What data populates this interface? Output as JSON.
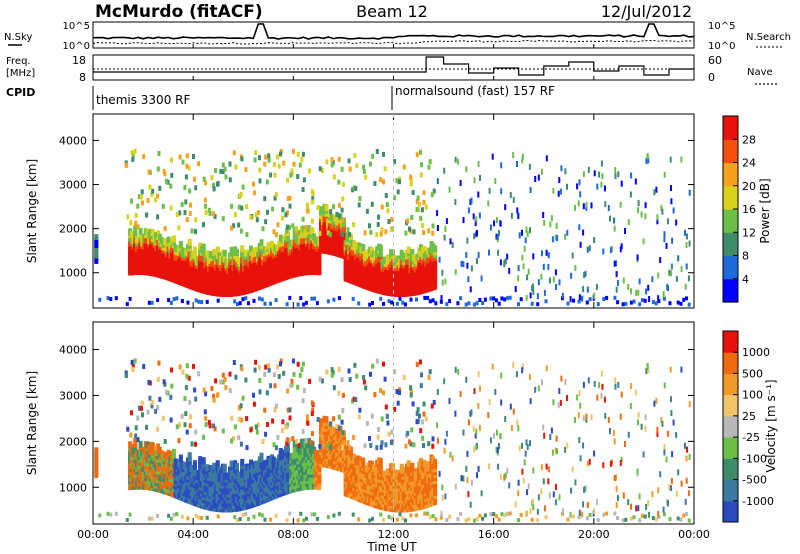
{
  "header": {
    "radar": "McMurdo (fitACF)",
    "beam": "Beam 12",
    "date": "12/Jul/2012"
  },
  "status_panels": {
    "nsky_label": "N.Sky",
    "nsearch_label": "N.Search",
    "freq_label": "Freq.",
    "freq_unit": "[MHz]",
    "nave_label": "Nave",
    "cpid_label": "CPID",
    "noise_ticks_left": [
      "10^5",
      "10^0"
    ],
    "noise_ticks_right": [
      "10^5",
      "10^0"
    ],
    "freq_ticks": [
      "18",
      "8"
    ],
    "nave_ticks": [
      "60",
      "0"
    ],
    "cpid_segments": [
      {
        "label": "themis 3300 RF",
        "start_hour": 0
      },
      {
        "label": "normalsound (fast) 157 RF",
        "start_hour": 12
      }
    ]
  },
  "chart_data": [
    {
      "type": "heatmap",
      "panel": "power",
      "ylabel": "Slant Range [km]",
      "yticks": [
        "1000",
        "2000",
        "3000",
        "4000"
      ],
      "ylim": [
        200,
        4600
      ],
      "xlim": [
        0,
        24
      ],
      "colorbar": {
        "label": "Power [dB]",
        "ticks": [
          "4",
          "8",
          "12",
          "16",
          "20",
          "24",
          "28"
        ],
        "colors": [
          "#0000ff",
          "#1e6ad8",
          "#3f8c6a",
          "#6cc04a",
          "#d8d21e",
          "#f7a21e",
          "#f55010",
          "#e8120c"
        ],
        "range": [
          0,
          32
        ]
      }
    },
    {
      "type": "heatmap",
      "panel": "velocity",
      "ylabel": "Slant Range [km]",
      "yticks": [
        "1000",
        "2000",
        "3000",
        "4000"
      ],
      "ylim": [
        200,
        4600
      ],
      "xlim": [
        0,
        24
      ],
      "xlabel": "Time UT",
      "xticks": [
        "00:00",
        "04:00",
        "08:00",
        "12:00",
        "16:00",
        "20:00",
        "00:00"
      ],
      "colorbar": {
        "label": "Velocity [m s⁻¹]",
        "ticks": [
          "1000",
          "500",
          "100",
          "25",
          "-25",
          "-100",
          "-500",
          "-1000"
        ],
        "colors": [
          "#2a4cc0",
          "#3d7aa0",
          "#3f8c6a",
          "#6cc04a",
          "#b8b8b8",
          "#f2c46a",
          "#f09a2a",
          "#f06a10",
          "#e8120c"
        ]
      }
    }
  ]
}
